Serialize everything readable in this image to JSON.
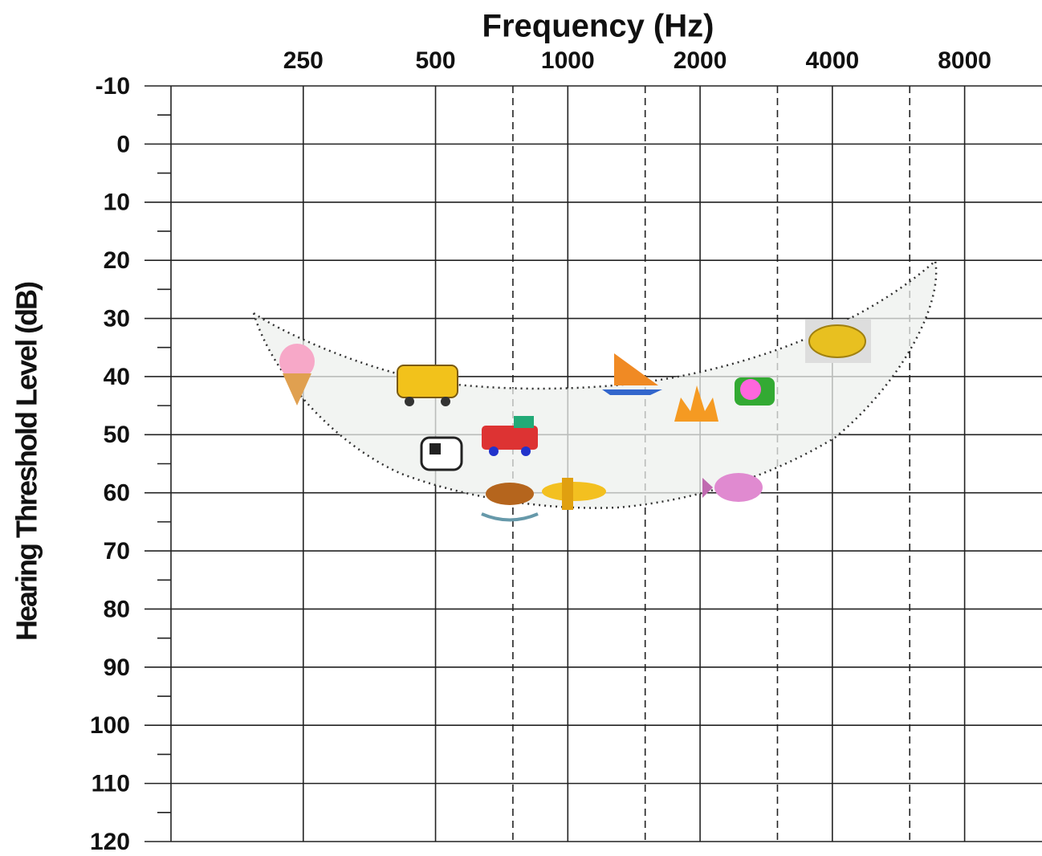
{
  "chart_data": {
    "type": "audiogram",
    "title": "Frequency (Hz)",
    "y_label": "Hearing Threshold Level (dB)",
    "xscale": "log",
    "xlim": [
      125,
      12000
    ],
    "xticks": [
      250,
      500,
      1000,
      2000,
      4000,
      8000
    ],
    "xminorticks": [
      750,
      1500,
      3000,
      6000
    ],
    "ylim": [
      -10,
      120
    ],
    "yreversed": true,
    "yticks": [
      -10,
      0,
      10,
      20,
      30,
      40,
      50,
      60,
      70,
      80,
      90,
      100,
      110,
      120
    ],
    "yminorticks": [
      -5,
      5,
      15,
      25,
      35,
      45,
      55,
      65,
      75,
      85,
      95,
      105,
      115
    ],
    "grid": true
  }
}
